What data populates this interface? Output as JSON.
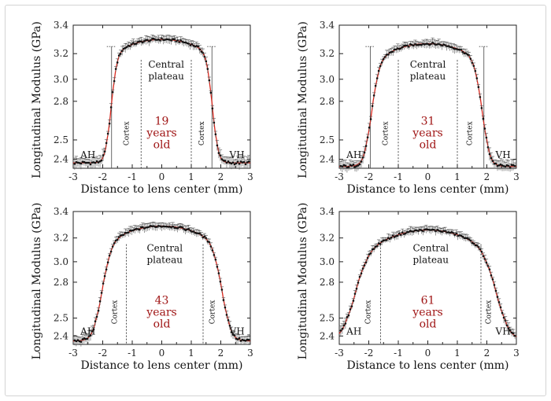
{
  "chart_data": [
    {
      "type": "scatter",
      "age_label": [
        "19",
        "years",
        "old"
      ],
      "xlabel": "Distance to lens center (mm)",
      "ylabel": "Longitudinal Modulus (GPa)",
      "xlim": [
        -3,
        3
      ],
      "ylim": [
        2.35,
        3.4
      ],
      "x_ticks": [
        -3,
        -2,
        -1,
        0,
        1,
        2,
        3
      ],
      "y_ticks": [
        2.4,
        2.5,
        2.8,
        3.0,
        3.2,
        3.4
      ],
      "y_tick_labels": [
        "2.4",
        "2.5",
        "2.8",
        "3.0",
        "3.2",
        "3.4"
      ],
      "regions": {
        "left": "AH",
        "right": "VH",
        "cortex": "Cortex",
        "center": [
          "Central",
          "plateau"
        ]
      },
      "dotted_lines_x": [
        -0.7,
        1.0
      ],
      "solid_lines_x": [
        -1.7,
        1.7
      ],
      "profile": {
        "edge_left": -1.7,
        "edge_right": 1.7,
        "width": 0.09,
        "floor": 2.38,
        "peak": 3.3,
        "error": 0.03
      }
    },
    {
      "type": "scatter",
      "age_label": [
        "31",
        "years",
        "old"
      ],
      "xlabel": "Distance to lens center (mm)",
      "ylabel": "Longitudinal Modulus (GPa)",
      "xlim": [
        -3,
        3
      ],
      "ylim": [
        2.35,
        3.4
      ],
      "x_ticks": [
        -3,
        -2,
        -1,
        0,
        1,
        2,
        3
      ],
      "y_ticks": [
        2.4,
        2.5,
        2.8,
        3.0,
        3.2,
        3.4
      ],
      "y_tick_labels": [
        "2.4",
        "2.5",
        "2.8",
        "3.0",
        "3.2",
        "3.4"
      ],
      "regions": {
        "left": "AH",
        "right": "VH",
        "cortex": "Cortex",
        "center": [
          "Central",
          "plateau"
        ]
      },
      "dotted_lines_x": [
        -1.0,
        1.0
      ],
      "solid_lines_x": [
        -1.95,
        1.9
      ],
      "profile": {
        "edge_left": -1.88,
        "edge_right": 1.82,
        "width": 0.12,
        "floor": 2.36,
        "peak": 3.27,
        "error": 0.03
      }
    },
    {
      "type": "scatter",
      "age_label": [
        "43",
        "years",
        "old"
      ],
      "xlabel": "Distance to lens center (mm)",
      "ylabel": "Longitudinal Modulus (GPa)",
      "xlim": [
        -3,
        3
      ],
      "ylim": [
        2.35,
        3.4
      ],
      "x_ticks": [
        -3,
        -2,
        -1,
        0,
        1,
        2,
        3
      ],
      "y_ticks": [
        2.4,
        2.5,
        2.8,
        3.0,
        3.2,
        3.4
      ],
      "y_tick_labels": [
        "2.4",
        "2.5",
        "2.8",
        "3.0",
        "3.2",
        "3.4"
      ],
      "regions": {
        "left": "AH",
        "right": "VH",
        "cortex": "Cortex",
        "center": [
          "Central",
          "plateau"
        ]
      },
      "dotted_lines_x": [
        -1.2,
        1.4
      ],
      "solid_lines_x": [],
      "profile": {
        "edge_left": -2.0,
        "edge_right": 2.02,
        "width": 0.14,
        "floor": 2.37,
        "peak": 3.29,
        "error": 0.03
      }
    },
    {
      "type": "scatter",
      "age_label": [
        "61",
        "years",
        "old"
      ],
      "xlabel": "Distance to lens center (mm)",
      "ylabel": "Longitudinal Modulus (GPa)",
      "xlim": [
        -3,
        3
      ],
      "ylim": [
        2.35,
        3.4
      ],
      "x_ticks": [
        -3,
        -2,
        -1,
        0,
        1,
        2,
        3
      ],
      "y_ticks": [
        2.4,
        2.5,
        2.8,
        3.0,
        3.2,
        3.4
      ],
      "y_tick_labels": [
        "2.4",
        "2.5",
        "2.8",
        "3.0",
        "3.2",
        "3.4"
      ],
      "regions": {
        "left": "AH",
        "right": "VH",
        "cortex": "Cortex",
        "center": [
          "Central",
          "plateau"
        ]
      },
      "dotted_lines_x": [
        -1.6,
        1.8
      ],
      "solid_lines_x": [],
      "profile": {
        "edge_left": -2.45,
        "edge_right": 2.3,
        "width": 0.2,
        "floor": 2.38,
        "peak": 3.26,
        "error": 0.03
      }
    }
  ],
  "colors": {
    "fit_line": "#d9261c",
    "age_text": "#a01616",
    "markers": "#111111",
    "error_bars": "#555555"
  }
}
